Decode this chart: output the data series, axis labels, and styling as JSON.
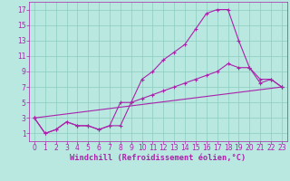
{
  "bg_color": "#b8e8e0",
  "grid_color": "#8cccc0",
  "line_color": "#aa22aa",
  "xlabel": "Windchill (Refroidissement éolien,°C)",
  "xlabel_color": "#aa22aa",
  "xlabel_fontsize": 6.2,
  "tick_color": "#aa22aa",
  "tick_fontsize": 5.5,
  "xlim": [
    -0.5,
    23.5
  ],
  "ylim": [
    0.0,
    18.0
  ],
  "yticks": [
    1,
    3,
    5,
    7,
    9,
    11,
    13,
    15,
    17
  ],
  "xticks": [
    0,
    1,
    2,
    3,
    4,
    5,
    6,
    7,
    8,
    9,
    10,
    11,
    12,
    13,
    14,
    15,
    16,
    17,
    18,
    19,
    20,
    21,
    22,
    23
  ],
  "line1_x": [
    0,
    1,
    2,
    3,
    4,
    5,
    6,
    7,
    8,
    9,
    10,
    11,
    12,
    13,
    14,
    15,
    16,
    17,
    18,
    19,
    20,
    21,
    22,
    23
  ],
  "line1_y": [
    3,
    1,
    1.5,
    2.5,
    2,
    2,
    1.5,
    2,
    2,
    5,
    8,
    9,
    10.5,
    11.5,
    12.5,
    14.5,
    16.5,
    17,
    17,
    13,
    9.5,
    8,
    8,
    7
  ],
  "line2_x": [
    0,
    1,
    2,
    3,
    4,
    5,
    6,
    7,
    8,
    9,
    10,
    11,
    12,
    13,
    14,
    15,
    16,
    17,
    18,
    19,
    20,
    21,
    22,
    23
  ],
  "line2_y": [
    3,
    1,
    1.5,
    2.5,
    2,
    2,
    1.5,
    2,
    5,
    5,
    5.5,
    6,
    6.5,
    7,
    7.5,
    8,
    8.5,
    9,
    10,
    9.5,
    9.5,
    7.5,
    8,
    7
  ],
  "line3_x": [
    0,
    23
  ],
  "line3_y": [
    3,
    7
  ]
}
